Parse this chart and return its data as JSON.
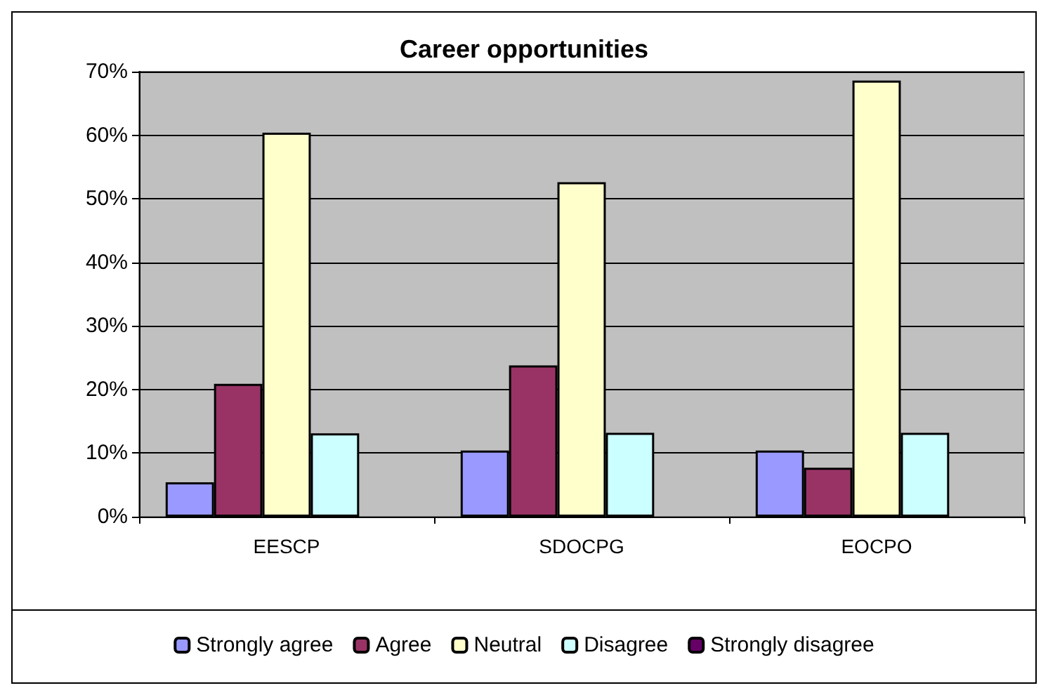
{
  "chart_data": {
    "type": "bar",
    "title": "Career opportunities",
    "categories": [
      "EESCP",
      "SDOCPG",
      "EOCPO"
    ],
    "series": [
      {
        "name": "Strongly agree",
        "color": "#9999ff",
        "values": [
          5.4,
          10.4,
          10.4
        ]
      },
      {
        "name": "Agree",
        "color": "#993366",
        "values": [
          20.9,
          23.8,
          7.7
        ]
      },
      {
        "name": "Neutral",
        "color": "#ffffcc",
        "values": [
          60.4,
          52.6,
          68.6
        ]
      },
      {
        "name": "Disagree",
        "color": "#ccffff",
        "values": [
          13.1,
          13.2,
          13.2
        ]
      },
      {
        "name": "Strongly disagree",
        "color": "#660066",
        "values": [
          0,
          0,
          0
        ]
      }
    ],
    "ylim": [
      0,
      70
    ],
    "yticks": [
      {
        "value": 0,
        "label": "0%"
      },
      {
        "value": 10,
        "label": "10%"
      },
      {
        "value": 20,
        "label": "20%"
      },
      {
        "value": 30,
        "label": "30%"
      },
      {
        "value": 40,
        "label": "40%"
      },
      {
        "value": 50,
        "label": "50%"
      },
      {
        "value": 60,
        "label": "60%"
      },
      {
        "value": 70,
        "label": "70%"
      }
    ],
    "grid": "y",
    "legend": "bottom"
  }
}
